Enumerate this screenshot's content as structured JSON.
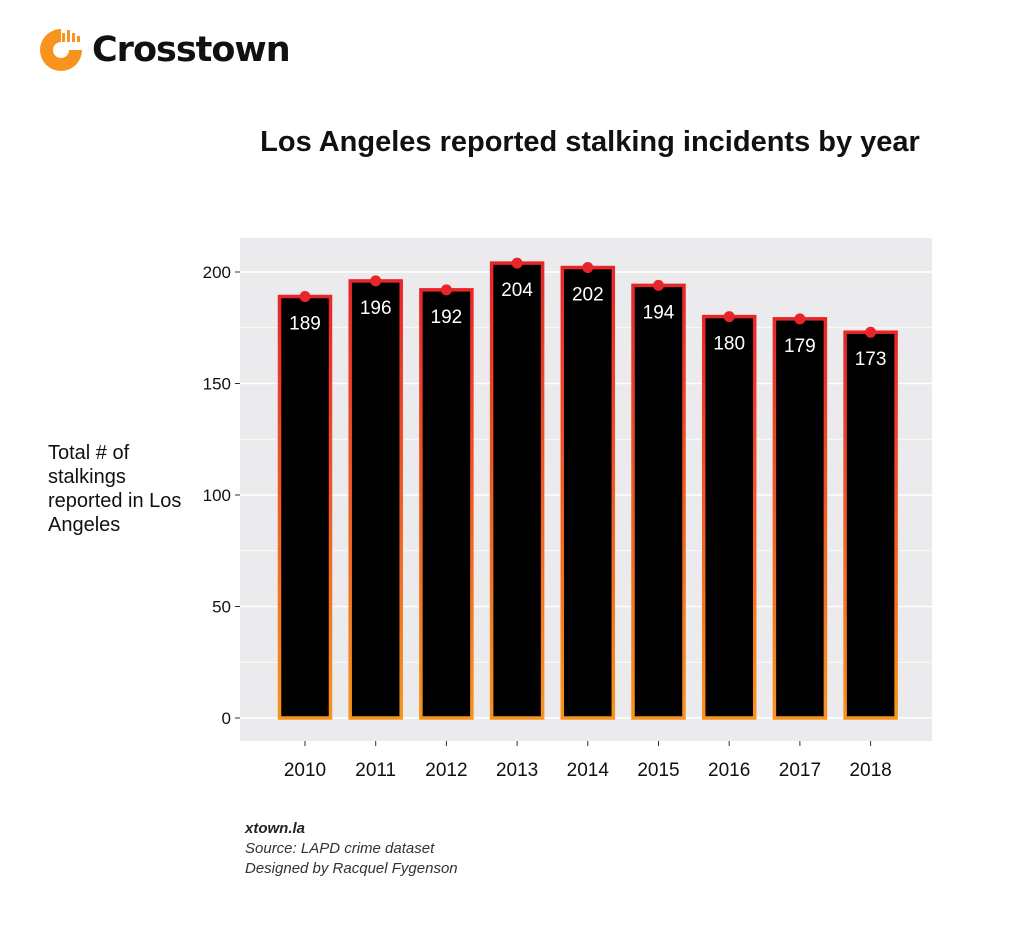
{
  "brand": {
    "name": "Crosstown",
    "accent": "#f7941d"
  },
  "chart_data": {
    "type": "bar",
    "title": "Los Angeles reported stalking incidents by year",
    "xlabel": "",
    "ylabel": "Total # of stalkings reported in Los Angeles",
    "categories": [
      "2010",
      "2011",
      "2012",
      "2013",
      "2014",
      "2015",
      "2016",
      "2017",
      "2018"
    ],
    "values": [
      189,
      196,
      192,
      204,
      202,
      194,
      180,
      179,
      173
    ],
    "data_labels": [
      "189",
      "196",
      "192",
      "204",
      "202",
      "194",
      "180",
      "179",
      "173"
    ],
    "ylim": [
      0,
      210
    ],
    "yticks": [
      0,
      50,
      100,
      150,
      200
    ],
    "ytick_labels": [
      "0",
      "50",
      "100",
      "150",
      "200"
    ],
    "grid": true,
    "legend": "none",
    "colors": {
      "bar_fill": "#000000",
      "bar_outline_top": "#e8262a",
      "bar_outline_bottom": "#f7941d",
      "marker": "#e8262a",
      "panel": "#ebebed",
      "gridline": "#ffffff"
    }
  },
  "footer": {
    "site": "xtown.la",
    "source": "Source: LAPD crime dataset",
    "credit": "Designed by Racquel Fygenson"
  }
}
